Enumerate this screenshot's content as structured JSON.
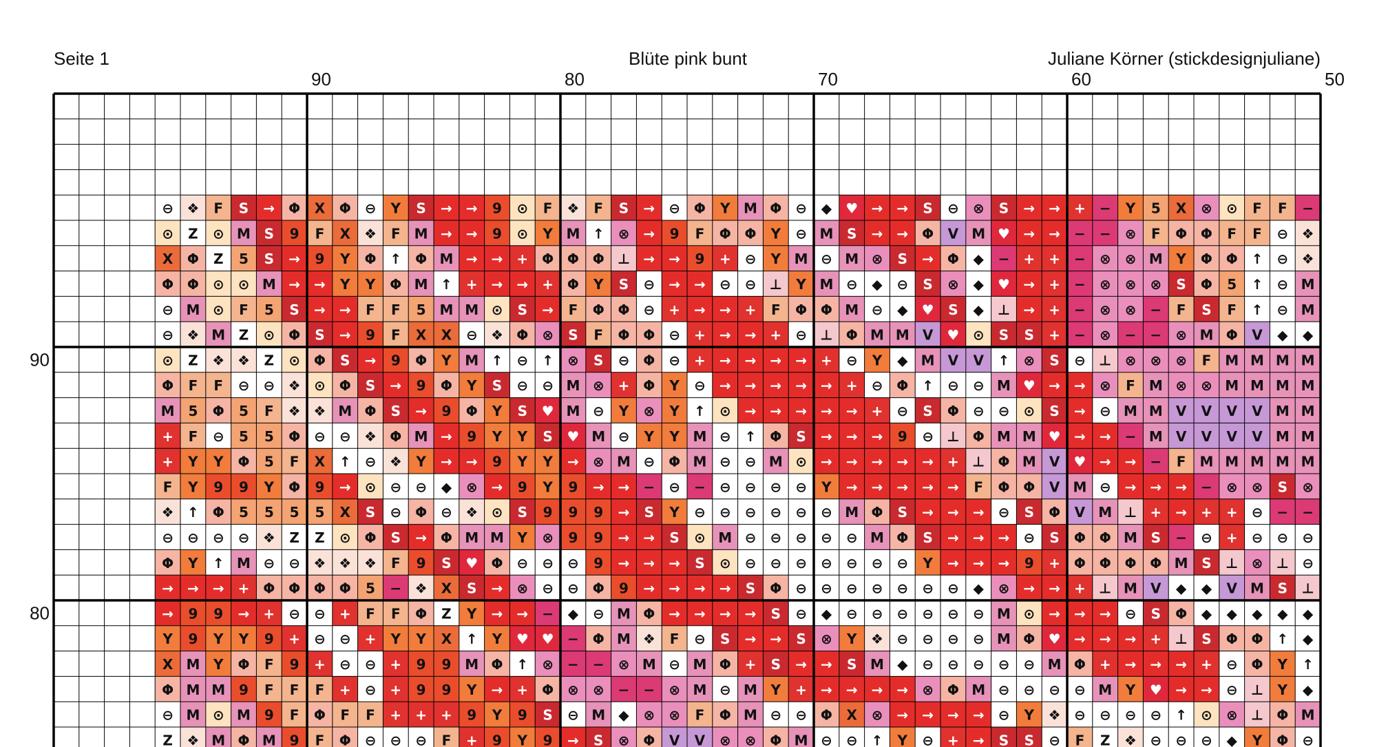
{
  "header": {
    "page": "Seite 1",
    "title": "Blüte pink bunt",
    "author": "Juliane Körner (stickdesignjuliane)"
  },
  "column_numbers": [
    90,
    80,
    70,
    60,
    50
  ],
  "row_numbers": [
    90,
    80
  ],
  "palette": {
    "→": "#e42d2a",
    "9": "#ea4d2c",
    "Y": "#f17c3c",
    "+": "#e0322f",
    "⊖": "#ffffff",
    "❖": "#fbe2d8",
    "F": "#f3b48e",
    "S": "#c92a30",
    "Z": "#ffffff",
    "⊙": "#fde3c0",
    "M": "#e792b8",
    "Φ": "#f6b4a4",
    "♥": "#e0283c",
    "◆": "#ffffff",
    "↑": "#ffffff",
    "5": "#f4a372",
    "X": "#eb6b3a",
    "−": "#dc3a74",
    "⊗": "#ea8fbc",
    "V": "#c698d6",
    "⊥": "#f4c8cc"
  },
  "rows": [
    [
      "⊖",
      "❖",
      "F",
      "S",
      "→",
      "Φ",
      "X",
      "Φ",
      "⊖",
      "Y",
      "S",
      "→",
      "→",
      "9",
      "⊙",
      "F",
      "❖",
      "F",
      "S",
      "→",
      "⊖",
      "Φ",
      "Y",
      "M",
      "Φ",
      "⊖",
      "◆",
      "♥",
      "→",
      "→",
      "S",
      "⊖",
      "⊗",
      "S",
      "→",
      "→",
      "+",
      "−",
      "Y",
      "5",
      "X",
      "⊗",
      "⊙",
      "F",
      "F",
      "−"
    ],
    [
      "⊙",
      "Z",
      "⊙",
      "M",
      "S",
      "9",
      "F",
      "X",
      "❖",
      "F",
      "M",
      "→",
      "→",
      "9",
      "⊙",
      "Y",
      "M",
      "↑",
      "⊗",
      "→",
      "9",
      "F",
      "Φ",
      "Φ",
      "Y",
      "⊖",
      "M",
      "S",
      "→",
      "→",
      "Φ",
      "V",
      "M",
      "♥",
      "→",
      "→",
      "−",
      "−",
      "⊗",
      "F",
      "Φ",
      "Φ",
      "F",
      "F",
      "⊖",
      "❖"
    ],
    [
      "X",
      "Φ",
      "Z",
      "5",
      "S",
      "→",
      "9",
      "Y",
      "Φ",
      "↑",
      "Φ",
      "M",
      "→",
      "→",
      "+",
      "Φ",
      "Φ",
      "Φ",
      "⊥",
      "→",
      "→",
      "9",
      "+",
      "⊖",
      "Y",
      "M",
      "⊖",
      "M",
      "⊗",
      "S",
      "→",
      "Φ",
      "◆",
      "−",
      "+",
      "+",
      "−",
      "⊗",
      "⊗",
      "M",
      "Y",
      "Φ",
      "Φ",
      "↑",
      "⊖",
      "❖"
    ],
    [
      "Φ",
      "Φ",
      "⊙",
      "⊙",
      "M",
      "→",
      "→",
      "Y",
      "Y",
      "Φ",
      "M",
      "↑",
      "+",
      "→",
      "→",
      "+",
      "Φ",
      "Y",
      "S",
      "⊖",
      "→",
      "→",
      "⊖",
      "⊖",
      "⊥",
      "Y",
      "M",
      "⊖",
      "◆",
      "⊖",
      "S",
      "⊗",
      "◆",
      "♥",
      "→",
      "+",
      "−",
      "⊗",
      "⊗",
      "⊗",
      "S",
      "Φ",
      "5",
      "↑",
      "⊖",
      "M"
    ],
    [
      "⊖",
      "M",
      "⊙",
      "F",
      "5",
      "S",
      "→",
      "→",
      "F",
      "F",
      "5",
      "M",
      "M",
      "⊙",
      "S",
      "→",
      "F",
      "Φ",
      "Φ",
      "⊖",
      "+",
      "→",
      "→",
      "+",
      "F",
      "Φ",
      "Φ",
      "M",
      "⊖",
      "◆",
      "♥",
      "S",
      "◆",
      "⊥",
      "→",
      "+",
      "−",
      "⊗",
      "⊗",
      "−",
      "F",
      "S",
      "F",
      "↑",
      "⊖",
      "M"
    ],
    [
      "⊖",
      "❖",
      "M",
      "Z",
      "⊙",
      "Φ",
      "S",
      "→",
      "9",
      "F",
      "X",
      "X",
      "⊖",
      "❖",
      "Φ",
      "⊗",
      "S",
      "F",
      "Φ",
      "Φ",
      "⊖",
      "+",
      "→",
      "→",
      "+",
      "⊖",
      "⊥",
      "Φ",
      "M",
      "M",
      "V",
      "♥",
      "⊙",
      "S",
      "S",
      "+",
      "−",
      "⊗",
      "−",
      "−",
      "⊗",
      "M",
      "Φ",
      "V",
      "◆",
      "◆"
    ],
    [
      "⊙",
      "Z",
      "❖",
      "❖",
      "Z",
      "⊙",
      "Φ",
      "S",
      "→",
      "9",
      "Φ",
      "Y",
      "M",
      "↑",
      "⊖",
      "↑",
      "⊗",
      "S",
      "⊖",
      "Φ",
      "⊖",
      "+",
      "→",
      "→",
      "→",
      "→",
      "+",
      "⊖",
      "Y",
      "◆",
      "M",
      "V",
      "V",
      "↑",
      "⊗",
      "S",
      "⊖",
      "⊥",
      "⊗",
      "⊗",
      "⊗",
      "F",
      "M",
      "M",
      "M",
      "M"
    ],
    [
      "Φ",
      "F",
      "F",
      "⊖",
      "⊖",
      "❖",
      "⊙",
      "Φ",
      "S",
      "→",
      "9",
      "Φ",
      "Y",
      "S",
      "⊖",
      "⊖",
      "M",
      "⊗",
      "+",
      "Φ",
      "Y",
      "⊖",
      "→",
      "→",
      "→",
      "→",
      "→",
      "+",
      "⊖",
      "Φ",
      "↑",
      "⊖",
      "⊖",
      "M",
      "♥",
      "→",
      "→",
      "⊗",
      "F",
      "M",
      "⊗",
      "⊗",
      "M",
      "M",
      "M",
      "M"
    ],
    [
      "M",
      "5",
      "Φ",
      "5",
      "F",
      "❖",
      "❖",
      "M",
      "Φ",
      "S",
      "→",
      "9",
      "Φ",
      "Y",
      "S",
      "♥",
      "M",
      "⊖",
      "Y",
      "⊗",
      "Y",
      "↑",
      "⊙",
      "→",
      "→",
      "→",
      "→",
      "→",
      "+",
      "⊖",
      "S",
      "Φ",
      "⊖",
      "⊖",
      "⊙",
      "S",
      "→",
      "⊖",
      "M",
      "M",
      "V",
      "V",
      "V",
      "V",
      "M",
      "M"
    ],
    [
      "+",
      "F",
      "⊖",
      "5",
      "5",
      "Φ",
      "⊖",
      "⊖",
      "❖",
      "Φ",
      "M",
      "→",
      "9",
      "Y",
      "Y",
      "S",
      "♥",
      "M",
      "⊖",
      "Y",
      "Y",
      "M",
      "⊖",
      "↑",
      "Φ",
      "S",
      "→",
      "→",
      "→",
      "9",
      "⊖",
      "⊥",
      "Φ",
      "M",
      "M",
      "♥",
      "→",
      "→",
      "−",
      "M",
      "V",
      "V",
      "V",
      "V",
      "M",
      "M"
    ],
    [
      "+",
      "Y",
      "Y",
      "Φ",
      "5",
      "F",
      "X",
      "↑",
      "⊖",
      "❖",
      "Y",
      "→",
      "→",
      "9",
      "Y",
      "Y",
      "→",
      "⊗",
      "M",
      "⊖",
      "Φ",
      "M",
      "⊖",
      "⊖",
      "M",
      "⊙",
      "→",
      "→",
      "→",
      "→",
      "→",
      "+",
      "⊥",
      "Φ",
      "M",
      "V",
      "♥",
      "→",
      "→",
      "−",
      "F",
      "M",
      "M",
      "M",
      "M",
      "M"
    ],
    [
      "F",
      "Y",
      "9",
      "9",
      "Y",
      "Φ",
      "9",
      "→",
      "⊙",
      "⊖",
      "⊖",
      "◆",
      "⊗",
      "→",
      "9",
      "Y",
      "9",
      "→",
      "→",
      "−",
      "⊖",
      "−",
      "⊖",
      "⊖",
      "⊖",
      "⊖",
      "Y",
      "→",
      "→",
      "→",
      "→",
      "→",
      "F",
      "Φ",
      "Φ",
      "V",
      "M",
      "⊖",
      "→",
      "→",
      "→",
      "−",
      "⊗",
      "⊗",
      "S",
      "⊗"
    ],
    [
      "❖",
      "↑",
      "Φ",
      "5",
      "5",
      "5",
      "5",
      "X",
      "S",
      "⊖",
      "Φ",
      "⊖",
      "❖",
      "⊙",
      "S",
      "9",
      "9",
      "9",
      "→",
      "S",
      "Y",
      "⊖",
      "⊖",
      "⊖",
      "⊖",
      "⊖",
      "⊖",
      "M",
      "Φ",
      "S",
      "→",
      "→",
      "→",
      "⊖",
      "S",
      "Φ",
      "V",
      "M",
      "⊥",
      "+",
      "→",
      "+",
      "+",
      "⊖",
      "−",
      "−"
    ],
    [
      "⊖",
      "⊖",
      "⊖",
      "⊖",
      "❖",
      "Z",
      "Z",
      "⊙",
      "Φ",
      "S",
      "→",
      "Φ",
      "M",
      "M",
      "Y",
      "⊗",
      "9",
      "9",
      "→",
      "→",
      "S",
      "⊙",
      "M",
      "⊖",
      "⊖",
      "⊖",
      "⊖",
      "⊖",
      "M",
      "Φ",
      "S",
      "→",
      "→",
      "→",
      "⊖",
      "S",
      "Φ",
      "Φ",
      "M",
      "S",
      "−",
      "⊖",
      "+",
      "⊖",
      "⊖",
      "⊖"
    ],
    [
      "Φ",
      "Y",
      "↑",
      "M",
      "⊖",
      "⊖",
      "❖",
      "❖",
      "❖",
      "F",
      "9",
      "S",
      "♥",
      "Φ",
      "⊖",
      "⊖",
      "⊖",
      "9",
      "→",
      "→",
      "→",
      "S",
      "⊙",
      "⊖",
      "⊖",
      "⊖",
      "⊖",
      "⊖",
      "⊖",
      "⊖",
      "Y",
      "→",
      "→",
      "→",
      "9",
      "+",
      "Φ",
      "Φ",
      "Φ",
      "Φ",
      "M",
      "S",
      "⊥",
      "⊗",
      "⊥",
      "⊖"
    ],
    [
      "→",
      "→",
      "→",
      "+",
      "Φ",
      "Φ",
      "Φ",
      "Φ",
      "5",
      "−",
      "❖",
      "X",
      "S",
      "→",
      "⊗",
      "⊖",
      "⊖",
      "Φ",
      "9",
      "→",
      "→",
      "→",
      "→",
      "S",
      "Φ",
      "⊖",
      "⊖",
      "⊖",
      "⊖",
      "⊖",
      "⊖",
      "⊖",
      "◆",
      "⊗",
      "→",
      "→",
      "+",
      "⊥",
      "M",
      "V",
      "◆",
      "◆",
      "V",
      "M",
      "S",
      "⊥"
    ],
    [
      "→",
      "9",
      "9",
      "→",
      "+",
      "⊖",
      "⊖",
      "+",
      "F",
      "F",
      "Φ",
      "Z",
      "Y",
      "→",
      "→",
      "−",
      "◆",
      "⊖",
      "M",
      "Φ",
      "→",
      "→",
      "→",
      "→",
      "S",
      "⊖",
      "◆",
      "⊖",
      "⊖",
      "⊖",
      "⊖",
      "⊖",
      "⊖",
      "M",
      "⊙",
      "→",
      "→",
      "→",
      "⊖",
      "S",
      "Φ",
      "◆",
      "◆",
      "◆",
      "◆",
      "◆"
    ],
    [
      "Y",
      "9",
      "Y",
      "Y",
      "9",
      "+",
      "⊖",
      "⊖",
      "+",
      "Y",
      "Y",
      "X",
      "↑",
      "Y",
      "♥",
      "♥",
      "−",
      "Φ",
      "M",
      "❖",
      "F",
      "⊖",
      "S",
      "→",
      "→",
      "S",
      "⊗",
      "Y",
      "❖",
      "⊖",
      "⊖",
      "⊖",
      "⊖",
      "M",
      "Φ",
      "♥",
      "→",
      "→",
      "→",
      "+",
      "⊥",
      "S",
      "Φ",
      "Φ",
      "↑",
      "◆"
    ],
    [
      "X",
      "M",
      "Y",
      "Φ",
      "F",
      "9",
      "+",
      "⊖",
      "⊖",
      "+",
      "9",
      "9",
      "M",
      "Φ",
      "↑",
      "⊗",
      "−",
      "−",
      "⊗",
      "M",
      "⊖",
      "M",
      "Φ",
      "+",
      "S",
      "→",
      "→",
      "S",
      "M",
      "◆",
      "⊖",
      "⊖",
      "⊖",
      "⊖",
      "⊖",
      "M",
      "Φ",
      "+",
      "→",
      "→",
      "→",
      "+",
      "⊖",
      "Φ",
      "Y",
      "↑"
    ],
    [
      "Φ",
      "M",
      "M",
      "9",
      "F",
      "F",
      "F",
      "+",
      "⊖",
      "+",
      "9",
      "9",
      "Y",
      "→",
      "+",
      "Φ",
      "⊗",
      "⊗",
      "−",
      "−",
      "⊗",
      "M",
      "⊖",
      "M",
      "Y",
      "+",
      "→",
      "→",
      "→",
      "→",
      "⊗",
      "Φ",
      "M",
      "⊖",
      "⊖",
      "⊖",
      "⊖",
      "M",
      "Y",
      "♥",
      "→",
      "→",
      "⊖",
      "⊥",
      "Y",
      "◆"
    ],
    [
      "⊖",
      "M",
      "⊙",
      "M",
      "9",
      "F",
      "Φ",
      "F",
      "F",
      "+",
      "+",
      "+",
      "9",
      "Y",
      "9",
      "S",
      "⊖",
      "M",
      "◆",
      "⊗",
      "⊗",
      "F",
      "Φ",
      "M",
      "⊖",
      "⊖",
      "Φ",
      "X",
      "⊗",
      "→",
      "→",
      "→",
      "→",
      "⊖",
      "Y",
      "❖",
      "⊖",
      "⊖",
      "⊖",
      "⊖",
      "↑",
      "⊙",
      "⊗",
      "⊥",
      "Φ",
      "M"
    ],
    [
      "Z",
      "❖",
      "M",
      "Φ",
      "M",
      "9",
      "F",
      "Φ",
      "⊖",
      "⊖",
      "⊖",
      "F",
      "+",
      "9",
      "Y",
      "9",
      "→",
      "S",
      "⊗",
      "Φ",
      "V",
      "V",
      "⊗",
      "⊗",
      "Φ",
      "M",
      "⊖",
      "⊖",
      "↑",
      "Y",
      "⊖",
      "+",
      "→",
      "S",
      "S",
      "⊖",
      "F",
      "Z",
      "❖",
      "⊖",
      "⊖",
      "⊖",
      "◆",
      "Y",
      "Φ",
      "⊖"
    ]
  ]
}
